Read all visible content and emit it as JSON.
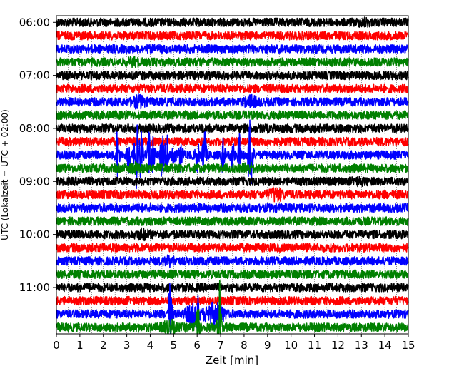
{
  "chart_data": {
    "type": "line",
    "title": "",
    "xlabel": "Zeit  [min]",
    "ylabel": "UTC (Lokalzeit = UTC + 02:00)",
    "x_ticks": [
      "0",
      "1",
      "2",
      "3",
      "4",
      "5",
      "6",
      "7",
      "8",
      "9",
      "10",
      "11",
      "12",
      "13",
      "14",
      "15"
    ],
    "xlim": [
      0,
      15
    ],
    "y_ticks": [
      "06:00",
      "07:00",
      "08:00",
      "09:00",
      "10:00",
      "11:00"
    ],
    "row_interval_minutes": 15,
    "grid": "vertical dotted lines every 0.5 min",
    "colors_cycle": [
      "#000000",
      "#ff0000",
      "#0000ff",
      "#008000"
    ],
    "traces": [
      {
        "start": "06:00",
        "color": "#000000",
        "events": [
          {
            "x": 13.1,
            "amp": 0.25
          }
        ]
      },
      {
        "start": "06:15",
        "color": "#ff0000",
        "events": []
      },
      {
        "start": "06:30",
        "color": "#0000ff",
        "events": []
      },
      {
        "start": "06:45",
        "color": "#008000",
        "events": [
          {
            "x": 3.3,
            "amp": 0.25
          }
        ]
      },
      {
        "start": "07:00",
        "color": "#000000",
        "events": []
      },
      {
        "start": "07:15",
        "color": "#ff0000",
        "events": []
      },
      {
        "start": "07:30",
        "color": "#0000ff",
        "events": [
          {
            "x": 3.5,
            "amp": 0.6
          },
          {
            "x": 8.3,
            "amp": 0.5
          }
        ]
      },
      {
        "start": "07:45",
        "color": "#008000",
        "events": []
      },
      {
        "start": "08:00",
        "color": "#000000",
        "events": []
      },
      {
        "start": "08:15",
        "color": "#ff0000",
        "events": []
      },
      {
        "start": "08:30",
        "color": "#0000ff",
        "events": [
          {
            "x": 2.6,
            "amp": 3.4
          },
          {
            "x": 3.1,
            "amp": 3.0
          },
          {
            "x": 3.4,
            "amp": 5.8
          },
          {
            "x": 3.6,
            "amp": 3.9
          },
          {
            "x": 3.95,
            "amp": 3.2
          },
          {
            "x": 4.1,
            "amp": 3.7
          },
          {
            "x": 4.5,
            "amp": 3.5
          },
          {
            "x": 4.7,
            "amp": 2.7
          },
          {
            "x": 5.0,
            "amp": 2.4
          },
          {
            "x": 5.3,
            "amp": 2.0
          },
          {
            "x": 6.0,
            "amp": 2.2
          },
          {
            "x": 6.3,
            "amp": 4.6
          },
          {
            "x": 7.1,
            "amp": 2.4
          },
          {
            "x": 7.5,
            "amp": 2.0
          },
          {
            "x": 7.8,
            "amp": 2.5
          },
          {
            "x": 8.2,
            "amp": 2.6
          },
          {
            "x": 8.3,
            "amp": 5.5
          }
        ]
      },
      {
        "start": "08:45",
        "color": "#008000",
        "events": [
          {
            "x": 3.4,
            "amp": 0.4
          },
          {
            "x": 8.2,
            "amp": 0.35
          }
        ]
      },
      {
        "start": "09:00",
        "color": "#000000",
        "events": [
          {
            "x": 12.9,
            "amp": 0.2
          }
        ]
      },
      {
        "start": "09:15",
        "color": "#ff0000",
        "events": [
          {
            "x": 9.35,
            "amp": 0.7
          }
        ]
      },
      {
        "start": "09:30",
        "color": "#0000ff",
        "events": []
      },
      {
        "start": "09:45",
        "color": "#008000",
        "events": []
      },
      {
        "start": "10:00",
        "color": "#000000",
        "events": [
          {
            "x": 3.7,
            "amp": 0.4
          }
        ]
      },
      {
        "start": "10:15",
        "color": "#ff0000",
        "events": []
      },
      {
        "start": "10:30",
        "color": "#0000ff",
        "events": [
          {
            "x": 4.8,
            "amp": 0.35
          }
        ]
      },
      {
        "start": "10:45",
        "color": "#008000",
        "events": []
      },
      {
        "start": "11:00",
        "color": "#000000",
        "events": []
      },
      {
        "start": "11:15",
        "color": "#ff0000",
        "events": []
      },
      {
        "start": "11:30",
        "color": "#0000ff",
        "events": [
          {
            "x": 4.85,
            "amp": 4.6
          },
          {
            "x": 5.8,
            "amp": 1.2
          },
          {
            "x": 6.0,
            "amp": 2.2
          },
          {
            "x": 6.5,
            "amp": 1.0
          },
          {
            "x": 6.9,
            "amp": 1.3
          }
        ]
      },
      {
        "start": "11:45",
        "color": "#008000",
        "events": [
          {
            "x": 6.0,
            "amp": 5.8
          },
          {
            "x": 6.95,
            "amp": 6.8
          },
          {
            "x": 4.8,
            "amp": 0.8
          }
        ]
      }
    ]
  }
}
